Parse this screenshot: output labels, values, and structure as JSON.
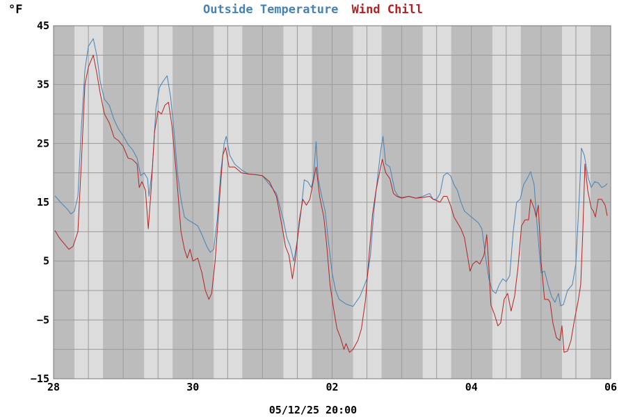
{
  "chart_data": {
    "type": "line",
    "title_parts": [
      {
        "text": "Outside Temperature",
        "color": "#4682b4"
      },
      {
        "text": "Wind Chill",
        "color": "#b22222"
      }
    ],
    "y_unit_label": "°F",
    "footer_label": "05/12/25 20:00",
    "ylim": [
      -15,
      45
    ],
    "y_ticks": [
      -15,
      -5,
      5,
      15,
      25,
      35,
      45
    ],
    "y_tick_labels": [
      "−15",
      "−5",
      "5",
      "15",
      "25",
      "35",
      "45"
    ],
    "xlim_days": [
      0,
      8
    ],
    "x_ticks": [
      {
        "day": 0,
        "label": "28"
      },
      {
        "day": 2,
        "label": "30"
      },
      {
        "day": 4,
        "label": "02"
      },
      {
        "day": 6,
        "label": "04"
      },
      {
        "day": 8,
        "label": "06"
      }
    ],
    "day_shading": {
      "light_spans": [
        [
          0.3,
          0.71
        ],
        [
          1.3,
          1.71
        ],
        [
          2.3,
          2.71
        ],
        [
          3.3,
          3.71
        ],
        [
          4.3,
          4.71
        ],
        [
          5.3,
          5.71
        ],
        [
          6.3,
          6.71
        ],
        [
          7.3,
          7.71
        ]
      ],
      "light_color": "#dcdcdc",
      "dark_color": "#bcbcbc"
    },
    "grid": true,
    "series": [
      {
        "name": "Outside Temperature",
        "color": "#4682b4",
        "points": [
          [
            0.02,
            16.1
          ],
          [
            0.1,
            15.0
          ],
          [
            0.2,
            13.8
          ],
          [
            0.25,
            13.0
          ],
          [
            0.3,
            13.5
          ],
          [
            0.35,
            16.0
          ],
          [
            0.4,
            28.0
          ],
          [
            0.45,
            37.5
          ],
          [
            0.5,
            41.5
          ],
          [
            0.57,
            42.8
          ],
          [
            0.62,
            40.0
          ],
          [
            0.67,
            35.5
          ],
          [
            0.73,
            32.5
          ],
          [
            0.8,
            31.5
          ],
          [
            0.87,
            29.0
          ],
          [
            0.93,
            27.5
          ],
          [
            1.0,
            26.3
          ],
          [
            1.07,
            24.8
          ],
          [
            1.13,
            24.0
          ],
          [
            1.2,
            22.5
          ],
          [
            1.25,
            19.5
          ],
          [
            1.3,
            20.0
          ],
          [
            1.35,
            19.0
          ],
          [
            1.37,
            16.0
          ],
          [
            1.42,
            21.0
          ],
          [
            1.47,
            31.0
          ],
          [
            1.52,
            34.5
          ],
          [
            1.57,
            35.5
          ],
          [
            1.63,
            36.5
          ],
          [
            1.68,
            33.0
          ],
          [
            1.73,
            27.0
          ],
          [
            1.78,
            20.0
          ],
          [
            1.83,
            15.5
          ],
          [
            1.88,
            12.5
          ],
          [
            1.93,
            12.0
          ],
          [
            2.0,
            11.5
          ],
          [
            2.07,
            11.0
          ],
          [
            2.13,
            9.5
          ],
          [
            2.2,
            7.5
          ],
          [
            2.25,
            6.5
          ],
          [
            2.3,
            7.0
          ],
          [
            2.35,
            12.0
          ],
          [
            2.4,
            20.0
          ],
          [
            2.45,
            25.0
          ],
          [
            2.48,
            26.2
          ],
          [
            2.53,
            23.0
          ],
          [
            2.6,
            21.5
          ],
          [
            2.7,
            20.5
          ],
          [
            2.8,
            19.8
          ],
          [
            2.9,
            19.7
          ],
          [
            3.0,
            19.5
          ],
          [
            3.1,
            18.0
          ],
          [
            3.2,
            16.5
          ],
          [
            3.3,
            12.0
          ],
          [
            3.35,
            9.0
          ],
          [
            3.4,
            7.5
          ],
          [
            3.45,
            5.0
          ],
          [
            3.5,
            8.5
          ],
          [
            3.55,
            13.0
          ],
          [
            3.6,
            18.8
          ],
          [
            3.65,
            18.5
          ],
          [
            3.7,
            17.5
          ],
          [
            3.73,
            19.0
          ],
          [
            3.77,
            25.3
          ],
          [
            3.8,
            19.0
          ],
          [
            3.85,
            16.0
          ],
          [
            3.9,
            13.5
          ],
          [
            3.95,
            8.0
          ],
          [
            4.0,
            3.0
          ],
          [
            4.05,
            0.0
          ],
          [
            4.1,
            -1.5
          ],
          [
            4.2,
            -2.3
          ],
          [
            4.3,
            -2.7
          ],
          [
            4.4,
            -1.0
          ],
          [
            4.5,
            2.0
          ],
          [
            4.55,
            6.0
          ],
          [
            4.6,
            13.5
          ],
          [
            4.65,
            19.0
          ],
          [
            4.7,
            24.0
          ],
          [
            4.73,
            26.2
          ],
          [
            4.77,
            21.5
          ],
          [
            4.83,
            21.0
          ],
          [
            4.9,
            17.0
          ],
          [
            4.95,
            16.0
          ],
          [
            5.0,
            15.8
          ],
          [
            5.1,
            16.0
          ],
          [
            5.2,
            15.7
          ],
          [
            5.3,
            16.0
          ],
          [
            5.4,
            16.5
          ],
          [
            5.45,
            15.5
          ],
          [
            5.5,
            15.5
          ],
          [
            5.55,
            16.5
          ],
          [
            5.6,
            19.5
          ],
          [
            5.65,
            20.0
          ],
          [
            5.7,
            19.5
          ],
          [
            5.75,
            18.0
          ],
          [
            5.8,
            17.0
          ],
          [
            5.85,
            15.0
          ],
          [
            5.9,
            13.5
          ],
          [
            6.0,
            12.5
          ],
          [
            6.1,
            11.5
          ],
          [
            6.15,
            10.5
          ],
          [
            6.2,
            6.0
          ],
          [
            6.25,
            2.0
          ],
          [
            6.3,
            0.0
          ],
          [
            6.35,
            -0.5
          ],
          [
            6.4,
            1.0
          ],
          [
            6.45,
            2.0
          ],
          [
            6.5,
            1.5
          ],
          [
            6.55,
            2.5
          ],
          [
            6.6,
            10.0
          ],
          [
            6.65,
            15.0
          ],
          [
            6.7,
            15.5
          ],
          [
            6.75,
            18.0
          ],
          [
            6.8,
            19.0
          ],
          [
            6.85,
            20.2
          ],
          [
            6.9,
            18.0
          ],
          [
            6.95,
            10.0
          ],
          [
            7.0,
            3.0
          ],
          [
            7.05,
            3.3
          ],
          [
            7.1,
            1.0
          ],
          [
            7.15,
            -1.0
          ],
          [
            7.2,
            -2.0
          ],
          [
            7.25,
            -0.5
          ],
          [
            7.28,
            -2.6
          ],
          [
            7.32,
            -2.4
          ],
          [
            7.38,
            0.0
          ],
          [
            7.45,
            1.0
          ],
          [
            7.5,
            4.5
          ],
          [
            7.55,
            16.0
          ],
          [
            7.58,
            24.2
          ],
          [
            7.62,
            23.0
          ],
          [
            7.68,
            19.0
          ],
          [
            7.72,
            17.5
          ],
          [
            7.77,
            18.5
          ],
          [
            7.82,
            18.3
          ],
          [
            7.87,
            17.5
          ],
          [
            7.92,
            17.8
          ],
          [
            7.95,
            18.2
          ]
        ]
      },
      {
        "name": "Wind Chill",
        "color": "#b22222",
        "points": [
          [
            0.02,
            10.2
          ],
          [
            0.08,
            9.0
          ],
          [
            0.15,
            8.0
          ],
          [
            0.22,
            7.0
          ],
          [
            0.28,
            7.5
          ],
          [
            0.35,
            10.0
          ],
          [
            0.4,
            22.0
          ],
          [
            0.45,
            35.0
          ],
          [
            0.5,
            38.0
          ],
          [
            0.57,
            40.0
          ],
          [
            0.62,
            37.0
          ],
          [
            0.67,
            33.5
          ],
          [
            0.73,
            30.0
          ],
          [
            0.8,
            28.5
          ],
          [
            0.87,
            26.0
          ],
          [
            0.93,
            25.5
          ],
          [
            1.0,
            24.5
          ],
          [
            1.07,
            22.5
          ],
          [
            1.13,
            22.3
          ],
          [
            1.2,
            21.5
          ],
          [
            1.23,
            17.5
          ],
          [
            1.27,
            18.5
          ],
          [
            1.32,
            17.0
          ],
          [
            1.36,
            10.5
          ],
          [
            1.4,
            17.0
          ],
          [
            1.45,
            27.0
          ],
          [
            1.5,
            30.5
          ],
          [
            1.55,
            30.0
          ],
          [
            1.6,
            31.5
          ],
          [
            1.65,
            32.0
          ],
          [
            1.7,
            28.0
          ],
          [
            1.77,
            19.0
          ],
          [
            1.83,
            10.0
          ],
          [
            1.88,
            7.0
          ],
          [
            1.92,
            5.5
          ],
          [
            1.96,
            7.0
          ],
          [
            2.0,
            5.0
          ],
          [
            2.07,
            5.5
          ],
          [
            2.13,
            3.0
          ],
          [
            2.18,
            0.0
          ],
          [
            2.23,
            -1.5
          ],
          [
            2.27,
            -0.5
          ],
          [
            2.32,
            5.0
          ],
          [
            2.38,
            15.0
          ],
          [
            2.43,
            23.0
          ],
          [
            2.47,
            24.3
          ],
          [
            2.52,
            21.0
          ],
          [
            2.6,
            21.0
          ],
          [
            2.7,
            20.0
          ],
          [
            2.8,
            19.8
          ],
          [
            2.9,
            19.7
          ],
          [
            3.0,
            19.5
          ],
          [
            3.1,
            18.5
          ],
          [
            3.2,
            16.0
          ],
          [
            3.28,
            11.0
          ],
          [
            3.33,
            7.5
          ],
          [
            3.38,
            6.0
          ],
          [
            3.43,
            2.0
          ],
          [
            3.48,
            6.0
          ],
          [
            3.53,
            12.0
          ],
          [
            3.58,
            15.5
          ],
          [
            3.63,
            14.5
          ],
          [
            3.68,
            15.5
          ],
          [
            3.72,
            18.0
          ],
          [
            3.77,
            21.0
          ],
          [
            3.82,
            16.0
          ],
          [
            3.88,
            12.5
          ],
          [
            3.92,
            8.0
          ],
          [
            3.97,
            1.0
          ],
          [
            4.02,
            -3.0
          ],
          [
            4.07,
            -6.5
          ],
          [
            4.12,
            -8.0
          ],
          [
            4.17,
            -10.0
          ],
          [
            4.2,
            -9.0
          ],
          [
            4.25,
            -10.5
          ],
          [
            4.3,
            -10.0
          ],
          [
            4.37,
            -8.5
          ],
          [
            4.42,
            -6.5
          ],
          [
            4.48,
            -1.5
          ],
          [
            4.53,
            6.0
          ],
          [
            4.58,
            13.0
          ],
          [
            4.63,
            17.0
          ],
          [
            4.68,
            20.0
          ],
          [
            4.72,
            22.3
          ],
          [
            4.77,
            20.0
          ],
          [
            4.83,
            19.0
          ],
          [
            4.88,
            16.5
          ],
          [
            4.93,
            16.0
          ],
          [
            5.0,
            15.7
          ],
          [
            5.1,
            16.0
          ],
          [
            5.2,
            15.7
          ],
          [
            5.3,
            15.8
          ],
          [
            5.4,
            16.0
          ],
          [
            5.45,
            15.5
          ],
          [
            5.5,
            15.3
          ],
          [
            5.55,
            15.0
          ],
          [
            5.6,
            16.0
          ],
          [
            5.65,
            16.0
          ],
          [
            5.7,
            14.5
          ],
          [
            5.75,
            12.5
          ],
          [
            5.8,
            11.5
          ],
          [
            5.85,
            10.5
          ],
          [
            5.9,
            9.0
          ],
          [
            5.95,
            5.5
          ],
          [
            5.98,
            3.3
          ],
          [
            6.02,
            4.5
          ],
          [
            6.07,
            5.0
          ],
          [
            6.12,
            4.5
          ],
          [
            6.18,
            6.0
          ],
          [
            6.22,
            9.5
          ],
          [
            6.25,
            4.0
          ],
          [
            6.28,
            -2.5
          ],
          [
            6.33,
            -4.0
          ],
          [
            6.38,
            -6.0
          ],
          [
            6.42,
            -5.5
          ],
          [
            6.47,
            -1.5
          ],
          [
            6.52,
            -0.5
          ],
          [
            6.57,
            -3.5
          ],
          [
            6.62,
            -1.0
          ],
          [
            6.67,
            4.0
          ],
          [
            6.72,
            11.0
          ],
          [
            6.77,
            12.0
          ],
          [
            6.82,
            12.0
          ],
          [
            6.85,
            15.5
          ],
          [
            6.9,
            14.0
          ],
          [
            6.93,
            12.5
          ],
          [
            6.96,
            14.5
          ],
          [
            7.0,
            5.0
          ],
          [
            7.05,
            -1.5
          ],
          [
            7.1,
            -1.5
          ],
          [
            7.13,
            -2.0
          ],
          [
            7.17,
            -5.5
          ],
          [
            7.22,
            -8.0
          ],
          [
            7.27,
            -8.5
          ],
          [
            7.3,
            -6.0
          ],
          [
            7.33,
            -10.5
          ],
          [
            7.38,
            -10.3
          ],
          [
            7.43,
            -8.5
          ],
          [
            7.48,
            -5.0
          ],
          [
            7.53,
            -2.0
          ],
          [
            7.57,
            1.0
          ],
          [
            7.6,
            10.0
          ],
          [
            7.63,
            21.5
          ],
          [
            7.67,
            17.0
          ],
          [
            7.72,
            14.0
          ],
          [
            7.75,
            13.5
          ],
          [
            7.78,
            12.5
          ],
          [
            7.82,
            15.5
          ],
          [
            7.87,
            15.5
          ],
          [
            7.92,
            14.5
          ],
          [
            7.95,
            12.7
          ]
        ]
      }
    ]
  }
}
